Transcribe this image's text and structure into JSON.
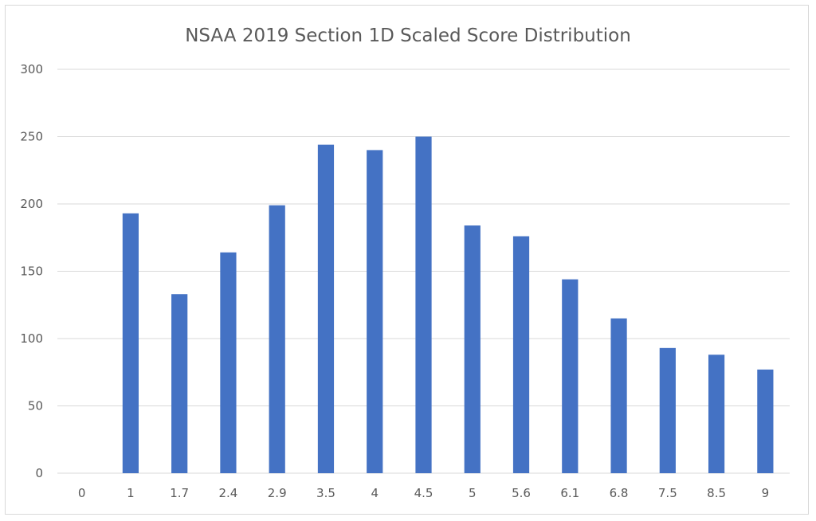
{
  "chart_data": {
    "type": "bar",
    "title": "NSAA 2019 Section 1D Scaled Score Distribution",
    "xlabel": "",
    "ylabel": "",
    "categories": [
      "0",
      "1",
      "1.7",
      "2.4",
      "2.9",
      "3.5",
      "4",
      "4.5",
      "5",
      "5.6",
      "6.1",
      "6.8",
      "7.5",
      "8.5",
      "9"
    ],
    "values": [
      0,
      193,
      133,
      164,
      199,
      244,
      240,
      250,
      184,
      176,
      144,
      115,
      93,
      88,
      77
    ],
    "ylim": [
      0,
      300
    ],
    "yticks": [
      0,
      50,
      100,
      150,
      200,
      250,
      300
    ],
    "bar_color": "#4472c4",
    "grid": true,
    "legend": "none"
  }
}
